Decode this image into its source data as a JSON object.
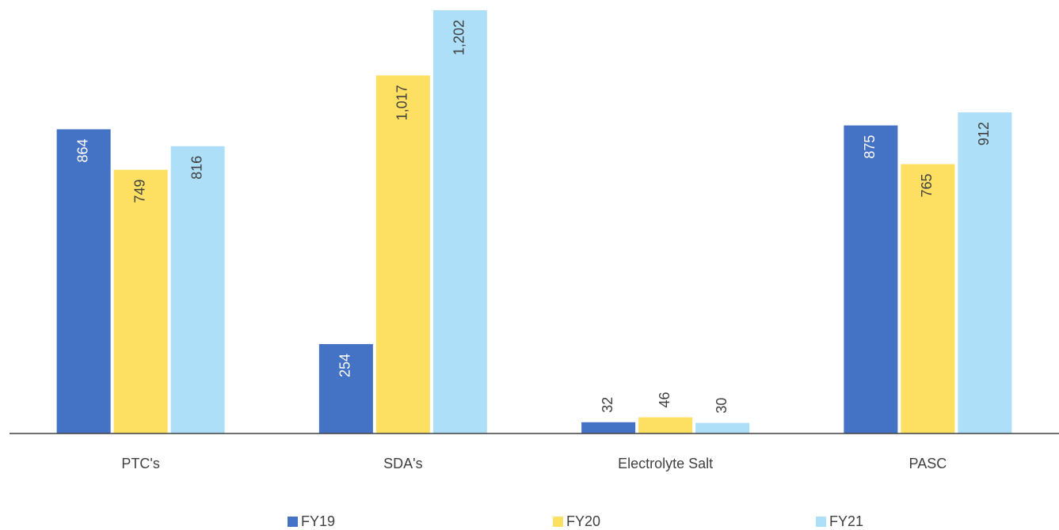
{
  "chart_data": {
    "type": "bar",
    "categories": [
      "PTC's",
      "SDA's",
      "Electrolyte Salt",
      "PASC"
    ],
    "series": [
      {
        "name": "FY19",
        "color": "#4472c4",
        "values": [
          864,
          254,
          32,
          875
        ],
        "value_labels": [
          "864",
          "254",
          "32",
          "875"
        ]
      },
      {
        "name": "FY20",
        "color": "#fde061",
        "values": [
          749,
          1017,
          46,
          765
        ],
        "value_labels": [
          "749",
          "1,017",
          "46",
          "765"
        ]
      },
      {
        "name": "FY21",
        "color": "#addff8",
        "values": [
          816,
          1202,
          30,
          912
        ],
        "value_labels": [
          "816",
          "1,202",
          "30",
          "912"
        ]
      }
    ],
    "legend": "bottom"
  }
}
